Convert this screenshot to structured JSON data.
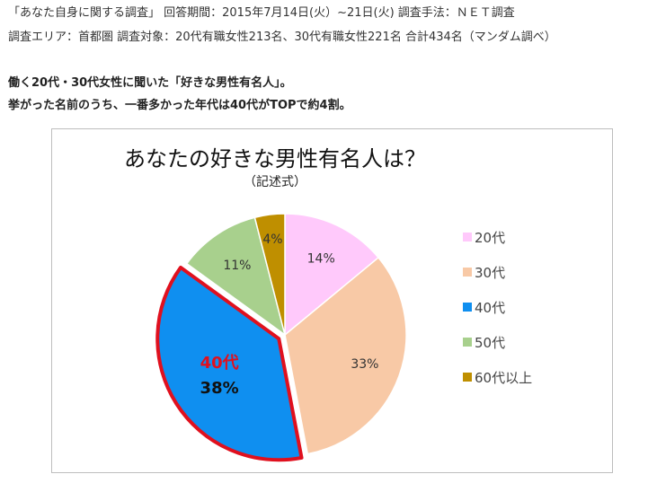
{
  "survey": {
    "line1": "「あなた自身に関する調査」 回答期間：2015年7月14日(火）~21日(火) 調査手法：ＮＥＴ調査",
    "line2": "調査エリア：首都圏 調査対象：20代有職女性213名、30代有職女性221名 合計434名（マンダム調べ）"
  },
  "intro": {
    "line1": "働く20代・30代女性に聞いた「好きな男性有名人」。",
    "line2": "挙がった名前のうち、一番多かった年代は40代がTOPで約4割。"
  },
  "chart_data": {
    "type": "pie",
    "title": "あなたの好きな男性有名人は？",
    "subtitle": "（記述式）",
    "legend_position": "right",
    "slices": [
      {
        "label": "20代",
        "value": 14,
        "display": "14%",
        "color": "#ffc9fb"
      },
      {
        "label": "30代",
        "value": 33,
        "display": "33%",
        "color": "#f8c9a6"
      },
      {
        "label": "40代",
        "value": 38,
        "display": "38%",
        "color": "#0f8ff0",
        "highlight": true,
        "highlight_border": "#e0101e"
      },
      {
        "label": "50代",
        "value": 11,
        "display": "11%",
        "color": "#a8d08d"
      },
      {
        "label": "60代以上",
        "value": 4,
        "display": "4%",
        "color": "#bf8f00"
      }
    ]
  }
}
